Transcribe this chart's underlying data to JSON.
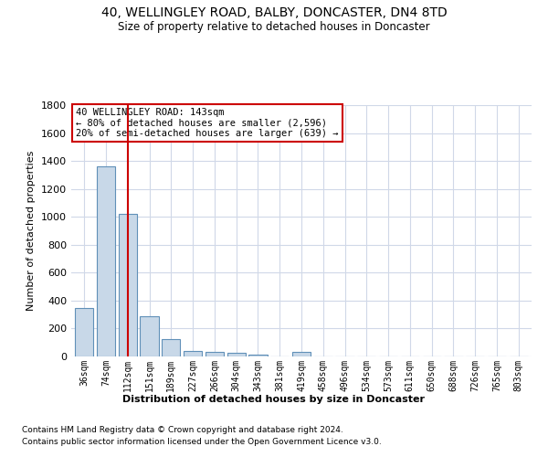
{
  "title": "40, WELLINGLEY ROAD, BALBY, DONCASTER, DN4 8TD",
  "subtitle": "Size of property relative to detached houses in Doncaster",
  "xlabel": "Distribution of detached houses by size in Doncaster",
  "ylabel": "Number of detached properties",
  "categories": [
    "36sqm",
    "74sqm",
    "112sqm",
    "151sqm",
    "189sqm",
    "227sqm",
    "266sqm",
    "304sqm",
    "343sqm",
    "381sqm",
    "419sqm",
    "458sqm",
    "496sqm",
    "534sqm",
    "573sqm",
    "611sqm",
    "650sqm",
    "688sqm",
    "726sqm",
    "765sqm",
    "803sqm"
  ],
  "values": [
    350,
    1360,
    1020,
    285,
    125,
    40,
    35,
    25,
    15,
    0,
    30,
    0,
    0,
    0,
    0,
    0,
    0,
    0,
    0,
    0,
    0
  ],
  "bar_color": "#c8d8e8",
  "bar_edge_color": "#6090b8",
  "vline_x_index": 2,
  "vline_color": "#cc0000",
  "annotation_text": "40 WELLINGLEY ROAD: 143sqm\n← 80% of detached houses are smaller (2,596)\n20% of semi-detached houses are larger (639) →",
  "annotation_box_color": "#ffffff",
  "annotation_box_edge": "#cc0000",
  "ylim": [
    0,
    1800
  ],
  "yticks": [
    0,
    200,
    400,
    600,
    800,
    1000,
    1200,
    1400,
    1600,
    1800
  ],
  "background_color": "#ffffff",
  "grid_color": "#d0d8e8",
  "footer_line1": "Contains HM Land Registry data © Crown copyright and database right 2024.",
  "footer_line2": "Contains public sector information licensed under the Open Government Licence v3.0."
}
